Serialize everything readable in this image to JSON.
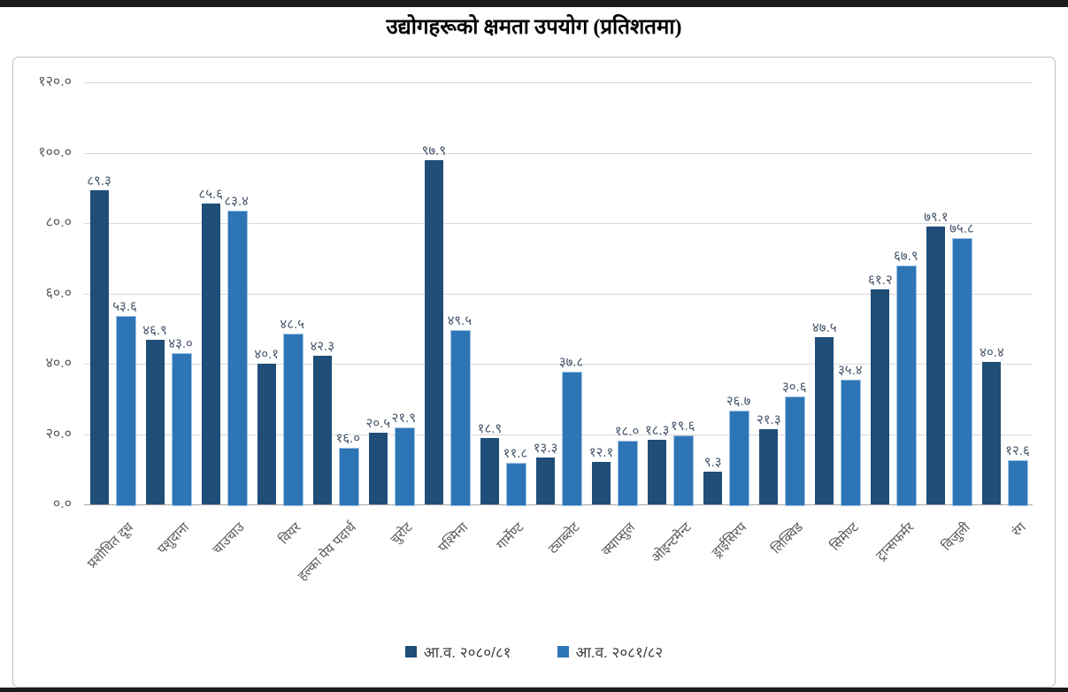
{
  "page": {
    "title": "उद्योगहरूको क्षमता उपयोग (प्रतिशतमा)"
  },
  "chart_data": {
    "type": "bar",
    "title": "उद्योगहरूको क्षमता उपयोग (प्रतिशतमा)",
    "xlabel": "",
    "ylabel": "",
    "ylim": [
      0,
      120
    ],
    "grid": true,
    "legend_position": "bottom",
    "categories": [
      "प्रशोधित दूध",
      "पशुदाना",
      "चाउचाउ",
      "वियर",
      "हल्का पेय पदार्थ",
      "चुरोट",
      "पश्मिना",
      "गार्मेण्ट",
      "ट्याब्लेट",
      "क्याप्सुल",
      "ओइन्टमेन्ट",
      "ड्राईसिरप",
      "लिक्विड",
      "सिमेण्ट",
      "ट्रान्सफर्मर",
      "विजुली",
      "रंग"
    ],
    "series": [
      {
        "name": "आ.व. २०८०/८१",
        "color": "#1F4E79",
        "border": "#1F4E79",
        "values": [
          89.3,
          46.9,
          85.6,
          40.1,
          42.3,
          20.5,
          97.9,
          18.9,
          13.3,
          12.1,
          18.3,
          9.3,
          21.3,
          47.5,
          61.2,
          79.1,
          40.4
        ],
        "labels": [
          "८९.३",
          "४६.९",
          "८५.६",
          "४०.१",
          "४२.३",
          "२०.५",
          "९७.९",
          "१८.९",
          "१३.३",
          "१२.१",
          "१८.३",
          "९.३",
          "२१.३",
          "४७.५",
          "६१.२",
          "७९.१",
          "४०.४"
        ]
      },
      {
        "name": "आ.व. २०८१/८२",
        "color": "#2E75B6",
        "border": "#9DC3E6",
        "values": [
          53.6,
          43.0,
          83.4,
          48.5,
          16.0,
          21.9,
          49.5,
          11.8,
          37.8,
          18.0,
          19.6,
          26.7,
          30.6,
          35.4,
          67.9,
          75.8,
          12.6
        ],
        "labels": [
          "५३.६",
          "४३.०",
          "८३.४",
          "४८.५",
          "१६.०",
          "२१.९",
          "४९.५",
          "११.८",
          "३७.८",
          "१८.०",
          "१९.६",
          "२६.७",
          "३०.६",
          "३५.४",
          "६७.९",
          "७५.८",
          "१२.६"
        ]
      }
    ],
    "y_axis": {
      "ticks": [
        {
          "value": 0,
          "label": "०.०"
        },
        {
          "value": 20,
          "label": "२०.०"
        },
        {
          "value": 40,
          "label": "४०.०"
        },
        {
          "value": 60,
          "label": "६०.०"
        },
        {
          "value": 80,
          "label": "८०.०"
        },
        {
          "value": 100,
          "label": "१००.०"
        },
        {
          "value": 120,
          "label": "१२०.०"
        }
      ]
    }
  }
}
